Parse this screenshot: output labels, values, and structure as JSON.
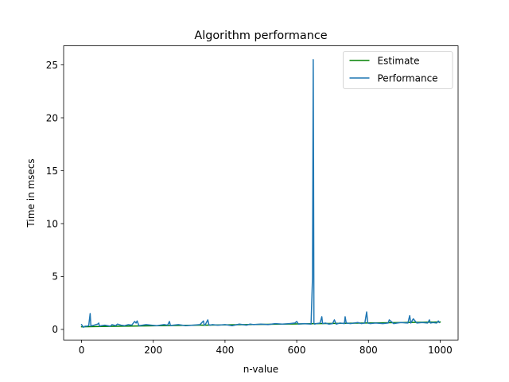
{
  "chart_data": {
    "type": "line",
    "title": "Algorithm performance",
    "xlabel": "n-value",
    "ylabel": "Time in msecs",
    "xlim": [
      -50,
      1050
    ],
    "ylim": [
      -1.0,
      26.8
    ],
    "xticks": [
      0,
      200,
      400,
      600,
      800,
      1000
    ],
    "yticks": [
      0,
      5,
      10,
      15,
      20,
      25
    ],
    "grid": false,
    "legend": "top-right",
    "series": [
      {
        "name": "Estimate",
        "color": "#008000",
        "x": [
          0,
          1000
        ],
        "y": [
          0.25,
          0.7
        ]
      },
      {
        "name": "Performance",
        "color": "#1f77b4",
        "x": [
          0,
          5,
          10,
          15,
          20,
          24,
          26,
          28,
          35,
          45,
          48,
          50,
          55,
          65,
          80,
          85,
          95,
          100,
          110,
          120,
          130,
          140,
          148,
          152,
          155,
          160,
          170,
          180,
          195,
          210,
          230,
          240,
          245,
          248,
          255,
          270,
          290,
          310,
          330,
          340,
          342,
          345,
          352,
          355,
          358,
          365,
          380,
          400,
          420,
          440,
          460,
          470,
          480,
          500,
          520,
          540,
          560,
          580,
          595,
          600,
          605,
          620,
          640,
          644,
          646,
          647,
          648,
          650,
          655,
          665,
          670,
          672,
          680,
          690,
          700,
          705,
          710,
          720,
          733,
          735,
          738,
          750,
          760,
          770,
          780,
          790,
          795,
          798,
          805,
          820,
          840,
          855,
          858,
          870,
          890,
          910,
          915,
          918,
          925,
          935,
          950,
          965,
          970,
          973,
          980,
          990,
          995,
          998
        ],
        "y": [
          0.45,
          0.2,
          0.3,
          0.3,
          0.35,
          1.5,
          0.3,
          0.35,
          0.4,
          0.5,
          0.6,
          0.3,
          0.35,
          0.4,
          0.3,
          0.45,
          0.35,
          0.5,
          0.4,
          0.35,
          0.45,
          0.4,
          0.75,
          0.6,
          0.8,
          0.35,
          0.4,
          0.45,
          0.4,
          0.35,
          0.45,
          0.4,
          0.75,
          0.35,
          0.4,
          0.45,
          0.35,
          0.4,
          0.45,
          0.8,
          0.4,
          0.45,
          0.9,
          0.45,
          0.4,
          0.45,
          0.4,
          0.45,
          0.35,
          0.5,
          0.4,
          0.5,
          0.45,
          0.5,
          0.45,
          0.55,
          0.5,
          0.55,
          0.6,
          0.75,
          0.5,
          0.55,
          0.5,
          4.9,
          25.5,
          15.0,
          0.6,
          0.5,
          0.55,
          0.6,
          1.2,
          0.55,
          0.6,
          0.5,
          0.55,
          0.9,
          0.5,
          0.6,
          0.55,
          1.2,
          0.6,
          0.55,
          0.6,
          0.65,
          0.55,
          0.6,
          1.65,
          0.6,
          0.55,
          0.6,
          0.55,
          0.6,
          0.9,
          0.55,
          0.65,
          0.6,
          1.3,
          0.6,
          1.0,
          0.6,
          0.65,
          0.6,
          0.9,
          0.6,
          0.65,
          0.6,
          0.8,
          0.65
        ]
      }
    ]
  }
}
